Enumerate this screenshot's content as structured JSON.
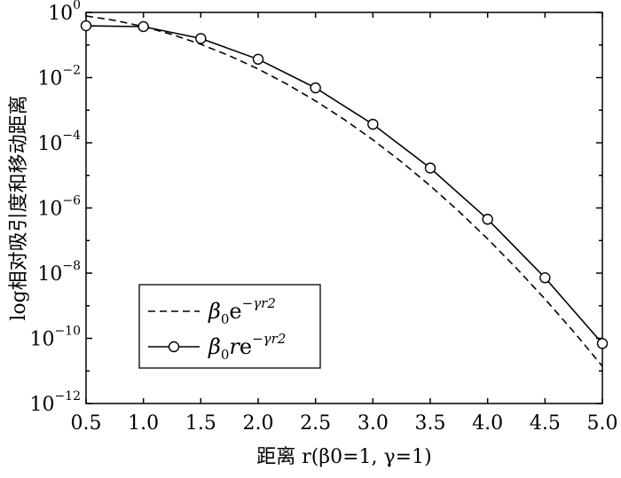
{
  "chart_data": {
    "type": "line",
    "xlabel": "距离 r(β0=1, γ=1)",
    "ylabel": "log相对吸引度和移动距离",
    "xlim": [
      0.5,
      5.0
    ],
    "ylim_exponent": [
      -12,
      0
    ],
    "y_scale": "log",
    "x_ticks": [
      "0.5",
      "1.0",
      "1.5",
      "2.0",
      "2.5",
      "3.0",
      "3.5",
      "4.0",
      "4.5",
      "5.0"
    ],
    "y_ticks": [
      {
        "base": "10",
        "exp": "0"
      },
      {
        "base": "10",
        "exp": "-2"
      },
      {
        "base": "10",
        "exp": "-4"
      },
      {
        "base": "10",
        "exp": "-6"
      },
      {
        "base": "10",
        "exp": "-8"
      },
      {
        "base": "10",
        "exp": "-10"
      },
      {
        "base": "10",
        "exp": "-12"
      }
    ],
    "legend_position": "lower-left",
    "series": [
      {
        "name": "β0e^{-γr2}",
        "legend": {
          "beta": "β",
          "sub": "0",
          "e": "e",
          "exp": "−γr2"
        },
        "style": "dashed",
        "marker": "none",
        "x": [
          0.5,
          0.75,
          1.0,
          1.25,
          1.5,
          1.75,
          2.0,
          2.25,
          2.5,
          2.75,
          3.0,
          3.25,
          3.5,
          3.75,
          4.0,
          4.25,
          4.5,
          4.75,
          5.0
        ],
        "y": [
          0.7788,
          0.5698,
          0.3679,
          0.2096,
          0.1054,
          0.04677,
          0.01832,
          0.00633,
          0.00193,
          0.000519,
          0.0001234,
          2.59e-05,
          4.79e-06,
          7.81e-07,
          1.125e-07,
          1.43e-08,
          1.605e-09,
          1.59e-10,
          1.389e-11
        ]
      },
      {
        "name": "β0re^{-γr2}",
        "legend": {
          "beta": "β",
          "sub": "0",
          "r": "r",
          "e": "e",
          "exp": "−γr2"
        },
        "style": "solid",
        "marker": "circle",
        "x": [
          0.5,
          1.0,
          1.5,
          2.0,
          2.5,
          3.0,
          3.5,
          4.0,
          4.5,
          5.0
        ],
        "y": [
          0.3894,
          0.3679,
          0.1581,
          0.03663,
          0.004826,
          0.00037,
          1.677e-05,
          4.5e-07,
          7.22e-09,
          6.94e-11
        ]
      }
    ]
  }
}
